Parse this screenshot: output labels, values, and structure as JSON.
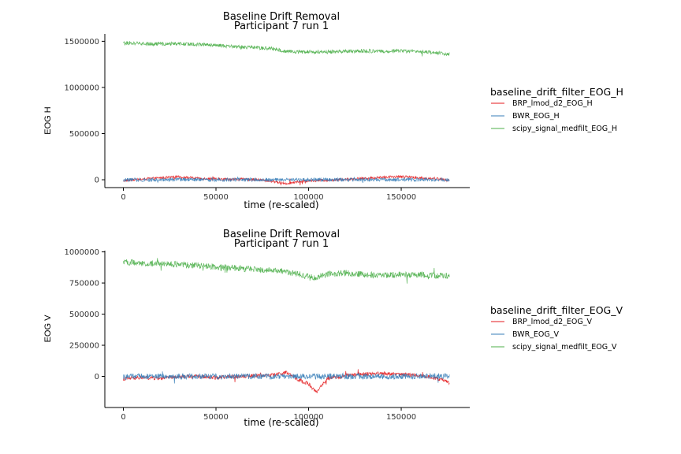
{
  "chart_data": [
    {
      "type": "line",
      "title_line1": "Baseline Drift Removal",
      "title_line2": "Participant 7 run 1",
      "xlabel": "time (re-scaled)",
      "ylabel": "EOG H",
      "xlim": [
        -10000,
        187000
      ],
      "ylim": [
        -85000,
        1580000
      ],
      "x_ticks": [
        0,
        50000,
        100000,
        150000
      ],
      "x_tick_labels": [
        "0",
        "50000",
        "100000",
        "150000"
      ],
      "y_ticks": [
        0,
        500000,
        1000000,
        1500000
      ],
      "y_tick_labels": [
        "0",
        "500000",
        "1000000",
        "1500000"
      ],
      "legend_title": "baseline_drift_filter_EOG_H",
      "legend_position": "right",
      "grid": false,
      "series": [
        {
          "name": "BRP_lmod_d2_EOG_H",
          "color": "#e41a1c",
          "x": [
            0,
            10000,
            20000,
            30000,
            40000,
            50000,
            60000,
            70000,
            80000,
            88000,
            95000,
            100000,
            110000,
            120000,
            130000,
            140000,
            150000,
            160000,
            170000,
            176000
          ],
          "y": [
            -10000,
            5000,
            20000,
            30000,
            15000,
            10000,
            5000,
            5000,
            -15000,
            -40000,
            -20000,
            -10000,
            -5000,
            5000,
            15000,
            25000,
            35000,
            20000,
            10000,
            -10000
          ],
          "noise": 28000
        },
        {
          "name": "BWR_EOG_H",
          "color": "#377eb8",
          "x": [
            0,
            20000,
            40000,
            60000,
            80000,
            100000,
            120000,
            140000,
            160000,
            176000
          ],
          "y": [
            0,
            0,
            0,
            0,
            0,
            0,
            0,
            0,
            0,
            0
          ],
          "noise": 40000
        },
        {
          "name": "scipy_signal_medfilt_EOG_H",
          "color": "#4daf4a",
          "x": [
            0,
            10000,
            20000,
            30000,
            40000,
            50000,
            60000,
            70000,
            80000,
            88000,
            95000,
            100000,
            110000,
            120000,
            130000,
            140000,
            150000,
            160000,
            170000,
            176000
          ],
          "y": [
            1480000,
            1475000,
            1470000,
            1475000,
            1465000,
            1455000,
            1445000,
            1430000,
            1420000,
            1390000,
            1385000,
            1385000,
            1385000,
            1390000,
            1395000,
            1390000,
            1395000,
            1385000,
            1375000,
            1360000
          ],
          "noise": 40000
        }
      ]
    },
    {
      "type": "line",
      "title_line1": "Baseline Drift Removal",
      "title_line2": "Participant 7 run 1",
      "xlabel": "time (re-scaled)",
      "ylabel": "EOG V",
      "xlim": [
        -10000,
        187000
      ],
      "ylim": [
        -250000,
        1010000
      ],
      "x_ticks": [
        0,
        50000,
        100000,
        150000
      ],
      "x_tick_labels": [
        "0",
        "50000",
        "100000",
        "150000"
      ],
      "y_ticks": [
        0,
        250000,
        500000,
        750000,
        1000000
      ],
      "y_tick_labels": [
        "0",
        "250000",
        "500000",
        "750000",
        "1000000"
      ],
      "legend_title": "baseline_drift_filter_EOG_V",
      "legend_position": "right",
      "grid": false,
      "series": [
        {
          "name": "BRP_lmod_d2_EOG_V",
          "color": "#e41a1c",
          "x": [
            0,
            10000,
            20000,
            30000,
            40000,
            50000,
            60000,
            70000,
            80000,
            88000,
            95000,
            100000,
            104000,
            110000,
            120000,
            130000,
            140000,
            150000,
            160000,
            170000,
            176000
          ],
          "y": [
            -20000,
            -10000,
            -15000,
            -5000,
            0,
            -10000,
            0,
            5000,
            10000,
            30000,
            -30000,
            -60000,
            -130000,
            -20000,
            5000,
            20000,
            25000,
            15000,
            10000,
            -20000,
            -50000
          ],
          "noise": 30000
        },
        {
          "name": "BWR_EOG_V",
          "color": "#377eb8",
          "x": [
            0,
            20000,
            40000,
            60000,
            80000,
            100000,
            120000,
            140000,
            160000,
            176000
          ],
          "y": [
            0,
            0,
            0,
            0,
            0,
            0,
            0,
            0,
            0,
            0
          ],
          "noise": 45000
        },
        {
          "name": "scipy_signal_medfilt_EOG_V",
          "color": "#4daf4a",
          "x": [
            0,
            10000,
            20000,
            30000,
            40000,
            50000,
            60000,
            70000,
            80000,
            88000,
            95000,
            100000,
            104000,
            110000,
            120000,
            130000,
            140000,
            150000,
            160000,
            170000,
            176000
          ],
          "y": [
            920000,
            910000,
            905000,
            900000,
            890000,
            880000,
            870000,
            860000,
            850000,
            840000,
            820000,
            800000,
            790000,
            820000,
            830000,
            820000,
            810000,
            820000,
            815000,
            810000,
            805000
          ],
          "noise": 50000
        }
      ]
    }
  ]
}
